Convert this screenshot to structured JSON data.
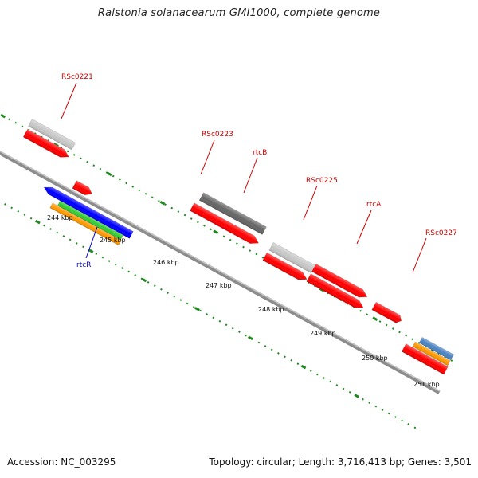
{
  "title": "Ralstonia solanacearum GMI1000, complete genome",
  "footer": {
    "accession": "Accession: NC_003295",
    "summary": "Topology: circular; Length: 3,716,413 bp; Genes: 3,501"
  },
  "colors": {
    "backbone": "#8a8a8a",
    "tick_dots": "#1f8a1f",
    "forward_cds": "#ff0000",
    "light_feature": "#c8c8c8",
    "dark_feature": "#666666",
    "blue_feature": "#0000ff",
    "green_feature": "#33cc33",
    "orange_feature": "#ff9900",
    "cyan_feature": "#00cccc",
    "steelblue_feature": "#4a84c4",
    "label_forward": "#cc0000",
    "label_reverse": "#0000cc"
  },
  "scale_labels": [
    "244 kbp",
    "245 kbp",
    "246 kbp",
    "247 kbp",
    "248 kbp",
    "249 kbp",
    "250 kbp",
    "251 kbp"
  ],
  "gene_labels": [
    {
      "text": "RSc0221",
      "strand": "forward"
    },
    {
      "text": "RSc0223",
      "strand": "forward"
    },
    {
      "text": "rtcB",
      "strand": "forward"
    },
    {
      "text": "RSc0225",
      "strand": "forward"
    },
    {
      "text": "rtcA",
      "strand": "forward"
    },
    {
      "text": "RSc0227",
      "strand": "forward"
    },
    {
      "text": "rtcR",
      "strand": "reverse"
    }
  ]
}
